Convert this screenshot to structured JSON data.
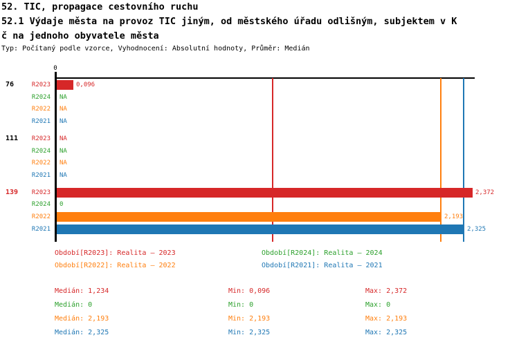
{
  "title": {
    "line1": "52. TIC, propagace cestovního ruchu",
    "line2": "52.1 Výdaje města na provoz TIC jiným, od městského úřadu odlišným, subjektem v K",
    "line3": "č na jednoho obyvatele města",
    "meta": "Typ: Počítaný podle vzorce, Vyhodnocení: Absolutní hodnoty, Průměr: Medián"
  },
  "colors": {
    "r2023_red": "#d62728",
    "r2024_green": "#2ca02c",
    "r2022_orange": "#ff7f0e",
    "r2021_blue": "#1f77b4",
    "axis_black": "#000000"
  },
  "chart_data": {
    "type": "bar",
    "orientation": "horizontal",
    "value_axis": {
      "tick_label": "0",
      "min": 0,
      "max_visible": 2.38,
      "decimal_separator": ","
    },
    "series": [
      {
        "name": "R2023",
        "legend": "Období[R2023]: Realita – 2023",
        "color": "#d62728",
        "median": 1.234,
        "min": 0.096,
        "max": 2.372
      },
      {
        "name": "R2024",
        "legend": "Období[R2024]: Realita – 2024",
        "color": "#2ca02c",
        "median": 0,
        "min": 0,
        "max": 0
      },
      {
        "name": "R2022",
        "legend": "Období[R2022]: Realita – 2022",
        "color": "#ff7f0e",
        "median": 2.193,
        "min": 2.193,
        "max": 2.193
      },
      {
        "name": "R2021",
        "legend": "Období[R2021]: Realita – 2021",
        "color": "#1f77b4",
        "median": 2.325,
        "min": 2.325,
        "max": 2.325
      }
    ],
    "series_row_order": [
      "R2023",
      "R2024",
      "R2022",
      "R2021"
    ],
    "groups": [
      {
        "label": "76",
        "highlight": false,
        "values": {
          "R2023": {
            "value": 0.096,
            "display": "0,096"
          },
          "R2024": {
            "value": null,
            "display": "NA"
          },
          "R2022": {
            "value": null,
            "display": "NA"
          },
          "R2021": {
            "value": null,
            "display": "NA"
          }
        }
      },
      {
        "label": "111",
        "highlight": false,
        "values": {
          "R2023": {
            "value": null,
            "display": "NA"
          },
          "R2024": {
            "value": null,
            "display": "NA"
          },
          "R2022": {
            "value": null,
            "display": "NA"
          },
          "R2021": {
            "value": null,
            "display": "NA"
          }
        }
      },
      {
        "label": "139",
        "highlight": true,
        "values": {
          "R2023": {
            "value": 2.372,
            "display": "2,372"
          },
          "R2024": {
            "value": 0,
            "display": "0"
          },
          "R2022": {
            "value": 2.193,
            "display": "2,193"
          },
          "R2021": {
            "value": 2.325,
            "display": "2,325"
          }
        }
      }
    ],
    "median_lines": [
      {
        "series": "R2023",
        "value": 1.234
      },
      {
        "series": "R2022",
        "value": 2.193
      },
      {
        "series": "R2021",
        "value": 2.325
      }
    ]
  },
  "legend": {
    "items": [
      {
        "label": "Období[R2023]: Realita – 2023",
        "color": "#d62728"
      },
      {
        "label": "Období[R2024]: Realita – 2024",
        "color": "#2ca02c"
      },
      {
        "label": "Období[R2022]: Realita – 2022",
        "color": "#ff7f0e"
      },
      {
        "label": "Období[R2021]: Realita – 2021",
        "color": "#1f77b4"
      }
    ]
  },
  "stats": {
    "rows": [
      {
        "color": "#d62728",
        "median": "Medián: 1,234",
        "min": "Min: 0,096",
        "max": "Max: 2,372"
      },
      {
        "color": "#2ca02c",
        "median": "Medián: 0",
        "min": "Min: 0",
        "max": "Max: 0"
      },
      {
        "color": "#ff7f0e",
        "median": "Medián: 2,193",
        "min": "Min: 2,193",
        "max": "Max: 2,193"
      },
      {
        "color": "#1f77b4",
        "median": "Medián: 2,325",
        "min": "Min: 2,325",
        "max": "Max: 2,325"
      }
    ]
  }
}
